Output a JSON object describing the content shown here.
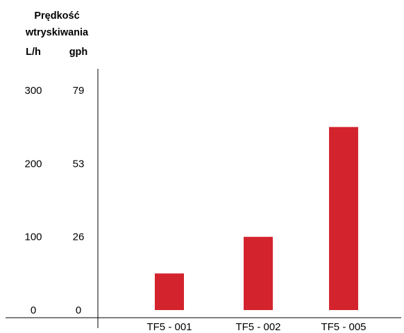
{
  "chart_data": {
    "type": "bar",
    "title_lines": [
      "Prędkość",
      "wtryskiwania"
    ],
    "units": {
      "primary": "L/h",
      "secondary": "gph"
    },
    "categories": [
      "TF5 - 001",
      "TF5 - 002",
      "TF5 - 005"
    ],
    "values": [
      50,
      100,
      250
    ],
    "ylim": [
      0,
      300
    ],
    "yticks_primary": [
      "0",
      "100",
      "200",
      "300"
    ],
    "yticks_secondary": [
      "0",
      "26",
      "53",
      "79"
    ],
    "bar_color": "#d3242d",
    "grid": false,
    "legend": "none"
  }
}
